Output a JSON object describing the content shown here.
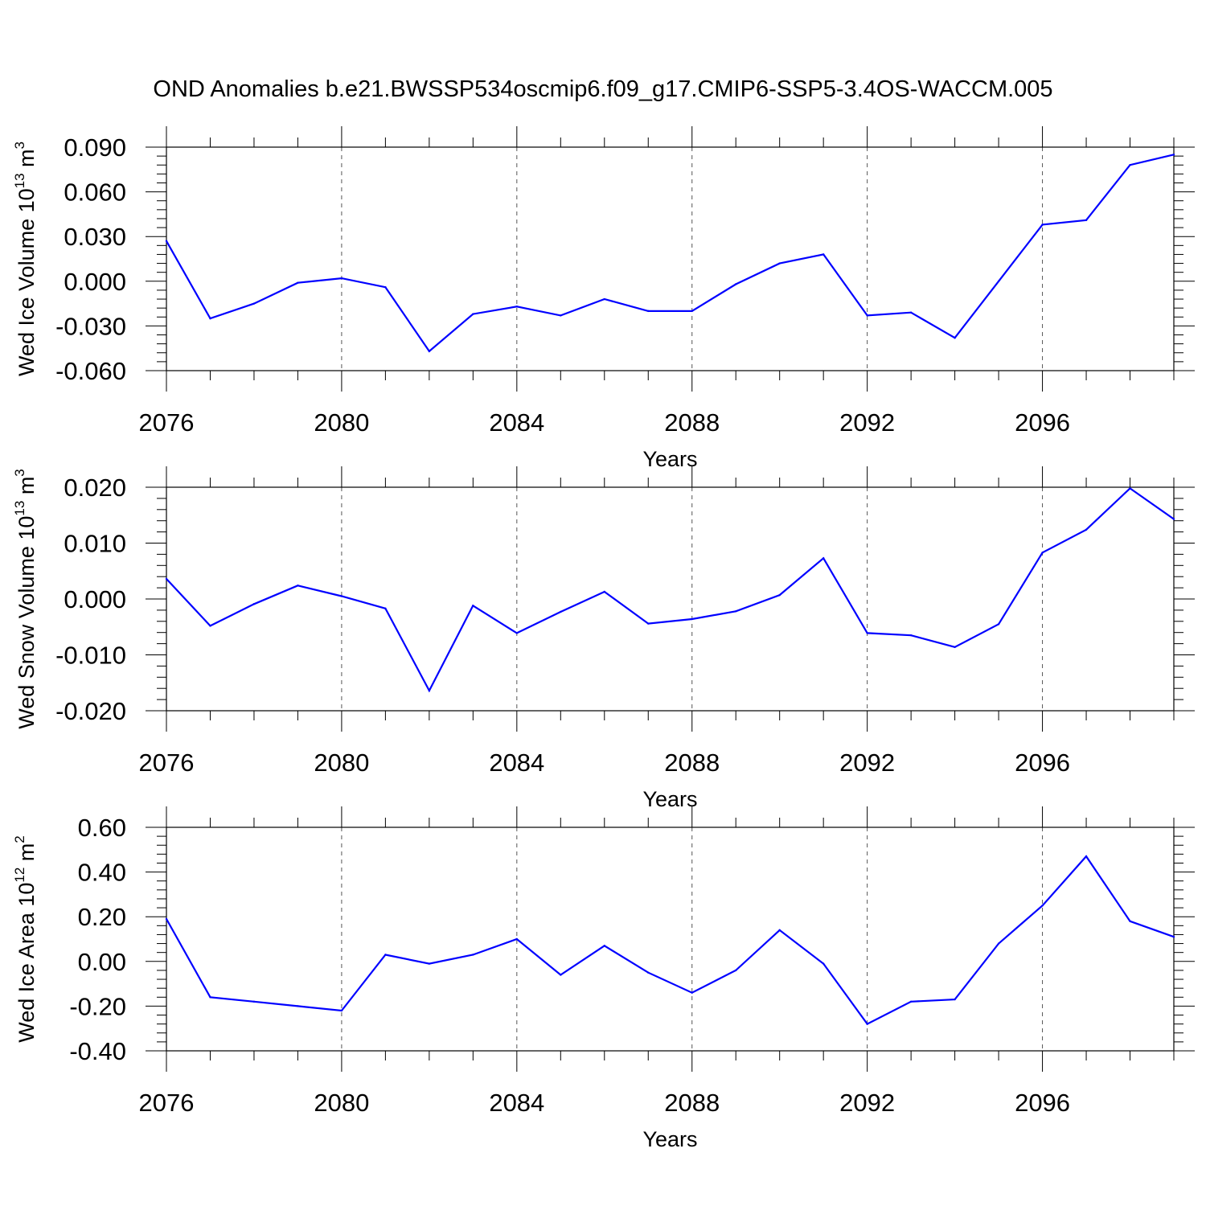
{
  "title": "OND Anomalies b.e21.BWSSP534oscmip6.f09_g17.CMIP6-SSP5-3.4OS-WACCM.005",
  "line_color": "#0000ff",
  "chart_data": [
    {
      "type": "line",
      "name": "ice-volume",
      "ylabel": {
        "prefix": "Wed Ice Volume 10",
        "exp": "13",
        "mid": " m",
        "unit_exp": "3"
      },
      "xlabel": "Years",
      "xlim": [
        2076,
        2099
      ],
      "ylim": [
        -0.06,
        0.09
      ],
      "x_ticks": [
        2076,
        2080,
        2084,
        2088,
        2092,
        2096
      ],
      "x_tick_labels": [
        "2076",
        "2080",
        "2084",
        "2088",
        "2092",
        "2096"
      ],
      "y_ticks": [
        -0.06,
        -0.03,
        0.0,
        0.03,
        0.06,
        0.09
      ],
      "y_tick_labels": [
        "-0.060",
        "-0.030",
        "0.000",
        "0.030",
        "0.060",
        "0.090"
      ],
      "x": [
        2076,
        2077,
        2078,
        2079,
        2080,
        2081,
        2082,
        2083,
        2084,
        2085,
        2086,
        2087,
        2088,
        2089,
        2090,
        2091,
        2092,
        2093,
        2094,
        2095,
        2096,
        2097,
        2098,
        2099
      ],
      "values": [
        0.027,
        -0.025,
        -0.015,
        -0.001,
        0.002,
        -0.004,
        -0.047,
        -0.022,
        -0.017,
        -0.023,
        -0.012,
        -0.02,
        -0.02,
        -0.002,
        0.012,
        0.018,
        -0.023,
        -0.021,
        -0.038,
        0.0,
        0.038,
        0.041,
        0.078,
        0.085
      ]
    },
    {
      "type": "line",
      "name": "snow-volume",
      "ylabel": {
        "prefix": "Wed Snow Volume 10",
        "exp": "13",
        "mid": " m",
        "unit_exp": "3"
      },
      "xlabel": "Years",
      "xlim": [
        2076,
        2099
      ],
      "ylim": [
        -0.02,
        0.02
      ],
      "x_ticks": [
        2076,
        2080,
        2084,
        2088,
        2092,
        2096
      ],
      "x_tick_labels": [
        "2076",
        "2080",
        "2084",
        "2088",
        "2092",
        "2096"
      ],
      "y_ticks": [
        -0.02,
        -0.01,
        0.0,
        0.01,
        0.02
      ],
      "y_tick_labels": [
        "-0.020",
        "-0.010",
        "0.000",
        "0.010",
        "0.020"
      ],
      "x": [
        2076,
        2077,
        2078,
        2079,
        2080,
        2081,
        2082,
        2083,
        2084,
        2085,
        2086,
        2087,
        2088,
        2089,
        2090,
        2091,
        2092,
        2093,
        2094,
        2095,
        2096,
        2097,
        2098,
        2099
      ],
      "values": [
        0.0036,
        -0.0048,
        -0.0009,
        0.0024,
        0.0005,
        -0.0017,
        -0.0164,
        -0.0012,
        -0.0061,
        -0.0023,
        0.0013,
        -0.0044,
        -0.0036,
        -0.0022,
        0.0007,
        0.0073,
        -0.0061,
        -0.0065,
        -0.0086,
        -0.0045,
        0.0083,
        0.0124,
        0.0198,
        0.0143
      ]
    },
    {
      "type": "line",
      "name": "ice-area",
      "ylabel": {
        "prefix": "Wed Ice Area 10",
        "exp": "12",
        "mid": " m",
        "unit_exp": "2"
      },
      "xlabel": "Years",
      "xlim": [
        2076,
        2099
      ],
      "ylim": [
        -0.4,
        0.6
      ],
      "x_ticks": [
        2076,
        2080,
        2084,
        2088,
        2092,
        2096
      ],
      "x_tick_labels": [
        "2076",
        "2080",
        "2084",
        "2088",
        "2092",
        "2096"
      ],
      "y_ticks": [
        -0.4,
        -0.2,
        0.0,
        0.2,
        0.4,
        0.6
      ],
      "y_tick_labels": [
        "-0.40",
        "-0.20",
        "0.00",
        "0.20",
        "0.40",
        "0.60"
      ],
      "x": [
        2076,
        2077,
        2078,
        2079,
        2080,
        2081,
        2082,
        2083,
        2084,
        2085,
        2086,
        2087,
        2088,
        2089,
        2090,
        2091,
        2092,
        2093,
        2094,
        2095,
        2096,
        2097,
        2098,
        2099
      ],
      "values": [
        0.19,
        -0.16,
        -0.18,
        -0.2,
        -0.22,
        0.03,
        -0.01,
        0.03,
        0.1,
        -0.06,
        0.07,
        -0.05,
        -0.14,
        -0.04,
        0.14,
        -0.01,
        -0.28,
        -0.18,
        -0.17,
        0.08,
        0.25,
        0.47,
        0.18,
        0.11
      ]
    }
  ]
}
